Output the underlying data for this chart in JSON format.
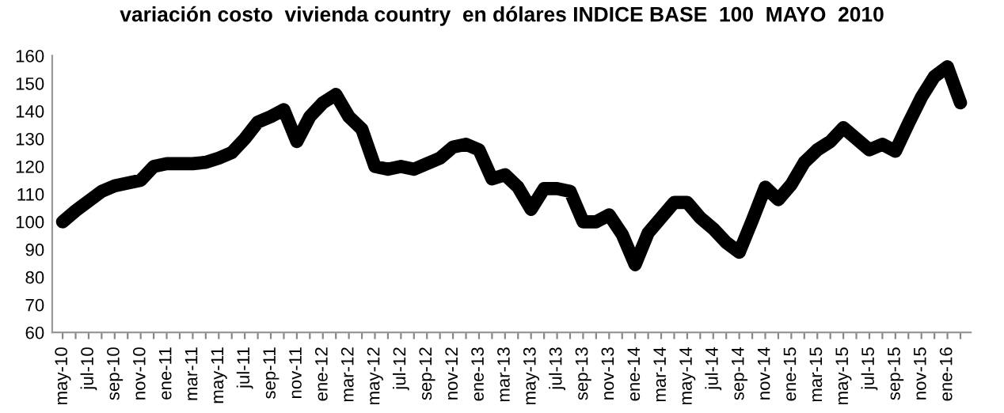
{
  "chart_data": {
    "type": "line",
    "title": "variación costo  vivienda country  en dólares INDICE BASE  100  MAYO  2010",
    "categories": [
      "may-10",
      null,
      "jul-10",
      null,
      "sep-10",
      null,
      "nov-10",
      null,
      "ene-11",
      null,
      "mar-11",
      null,
      "may-11",
      null,
      "jul-11",
      null,
      "sep-11",
      null,
      "nov-11",
      null,
      "ene-12",
      null,
      "mar-12",
      null,
      "may-12",
      null,
      "jul-12",
      null,
      "sep-12",
      null,
      "nov-12",
      null,
      "ene-13",
      null,
      "mar-13",
      null,
      "may-13",
      null,
      "jul-13",
      null,
      "sep-13",
      null,
      "nov-13",
      null,
      "ene-14",
      null,
      "mar-14",
      null,
      "may-14",
      null,
      "jul-14",
      null,
      "sep-14",
      null,
      "nov-14",
      null,
      "ene-15",
      null,
      "mar-15",
      null,
      "may-15",
      null,
      "jul-15",
      null,
      "sep-15",
      null,
      "nov-15",
      null,
      "ene-16",
      null
    ],
    "series": [
      {
        "color": "#000000",
        "values": [
          100,
          104,
          107.5,
          111,
          113,
          114,
          115,
          120,
          121,
          121,
          121,
          121.5,
          123,
          125,
          130,
          136,
          138,
          140.5,
          129,
          138,
          143,
          146,
          138,
          133.5,
          120,
          119,
          120,
          119,
          121,
          123,
          127,
          128,
          126,
          115.5,
          117,
          112.5,
          104.5,
          112,
          112,
          111,
          100,
          100,
          102.5,
          95.5,
          84.5,
          96,
          101.5,
          107,
          107,
          101.5,
          97.5,
          92.5,
          89,
          100.5,
          112.5,
          108,
          113.5,
          121.5,
          126,
          129,
          134,
          130,
          126,
          128,
          125.5,
          135.5,
          145,
          152.5,
          156,
          143
        ]
      }
    ],
    "ylim": [
      60,
      160
    ],
    "yticks": [
      60,
      70,
      80,
      90,
      100,
      110,
      120,
      130,
      140,
      150,
      160
    ],
    "grid": false,
    "marker": "none",
    "line_style": "solid"
  }
}
